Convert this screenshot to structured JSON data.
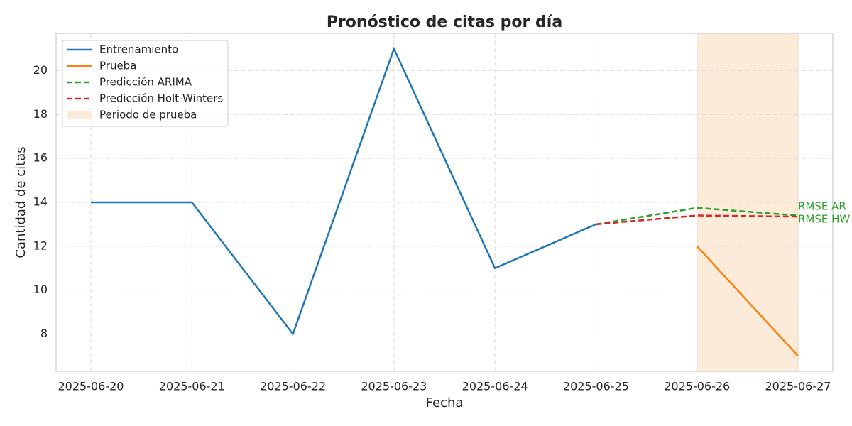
{
  "chart_data": {
    "type": "line",
    "title": "Pronóstico de citas por día",
    "x_label": "Fecha",
    "y_label": "Cantidad de citas",
    "categories": [
      "2025-06-20",
      "2025-06-21",
      "2025-06-22",
      "2025-06-23",
      "2025-06-24",
      "2025-06-25",
      "2025-06-26",
      "2025-06-27"
    ],
    "series": [
      {
        "name": "Entrenamiento",
        "color": "#1f77b4",
        "dashed": false,
        "values": [
          14,
          14,
          8,
          21,
          11,
          13,
          null,
          null
        ]
      },
      {
        "name": "Prueba",
        "color": "#ff7f0e",
        "dashed": false,
        "values": [
          null,
          null,
          null,
          null,
          null,
          null,
          12,
          7
        ]
      },
      {
        "name": "Predicción ARIMA",
        "color": "#2ca02c",
        "dashed": true,
        "values": [
          null,
          null,
          null,
          null,
          null,
          13,
          13.75,
          13.4
        ]
      },
      {
        "name": "Predicción Holt-Winters",
        "color": "#d62728",
        "dashed": true,
        "values": [
          null,
          null,
          null,
          null,
          null,
          13,
          13.4,
          13.35
        ]
      }
    ],
    "shaded_span": {
      "name": "Periodo de prueba",
      "from": "2025-06-26",
      "to": "2025-06-27",
      "color": "#fdebd9"
    },
    "annotations": [
      {
        "text": "RMSE AR",
        "color": "#2ca02c"
      },
      {
        "text": "RMSE HW",
        "color": "#2ca02c"
      }
    ],
    "ylim": [
      6.3,
      21.7
    ],
    "yticks": [
      8,
      10,
      12,
      14,
      16,
      18,
      20
    ],
    "grid": true,
    "legend": "upper left"
  }
}
